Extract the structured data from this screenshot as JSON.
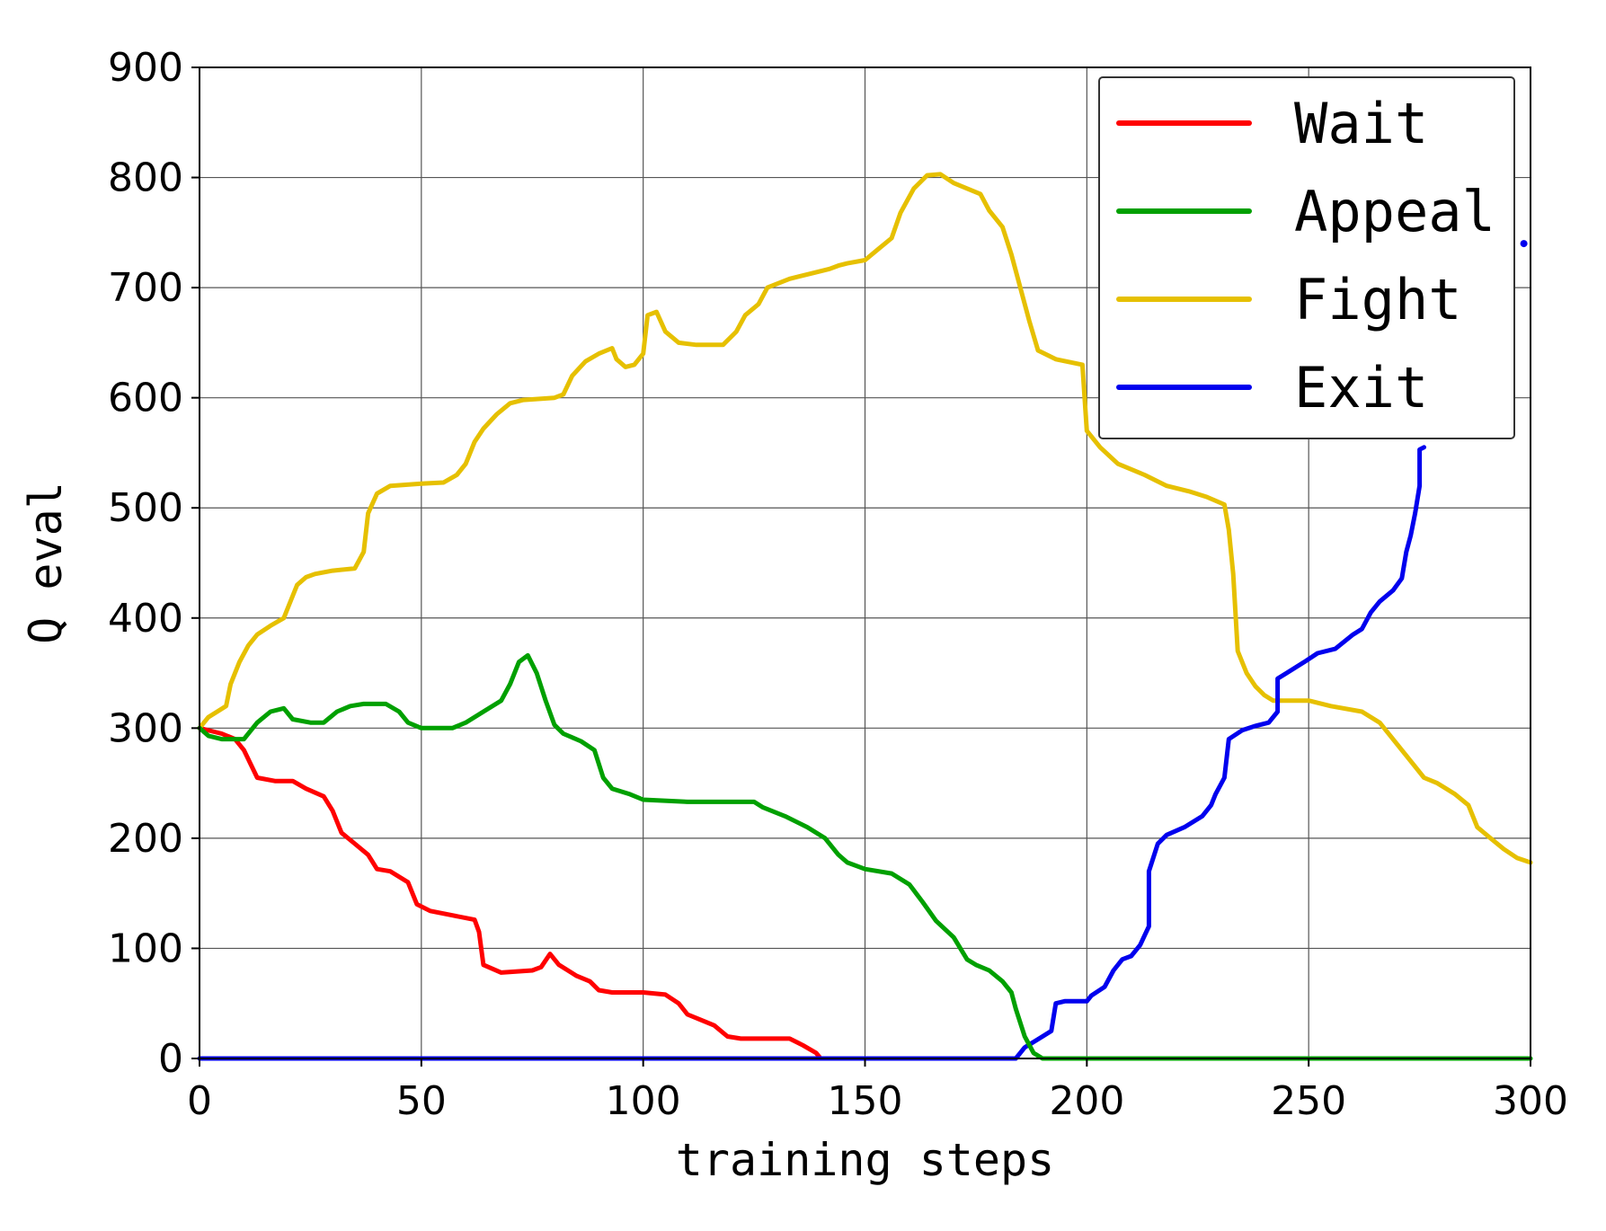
{
  "chart_data": {
    "type": "line",
    "xlabel": "training steps",
    "ylabel": "Q eval",
    "xlim": [
      0,
      300
    ],
    "ylim": [
      0,
      900
    ],
    "xticks": [
      "0",
      "50",
      "100",
      "150",
      "200",
      "250",
      "300"
    ],
    "yticks": [
      "0",
      "100",
      "200",
      "300",
      "400",
      "500",
      "600",
      "700",
      "800",
      "900"
    ],
    "grid": true,
    "legend_position": "top-right",
    "series": [
      {
        "name": "Wait",
        "color": "#ff0000",
        "points": [
          [
            0,
            300
          ],
          [
            5,
            295
          ],
          [
            8,
            290
          ],
          [
            10,
            280
          ],
          [
            13,
            255
          ],
          [
            17,
            252
          ],
          [
            21,
            252
          ],
          [
            24,
            245
          ],
          [
            28,
            238
          ],
          [
            30,
            225
          ],
          [
            32,
            205
          ],
          [
            35,
            195
          ],
          [
            38,
            185
          ],
          [
            40,
            172
          ],
          [
            43,
            170
          ],
          [
            47,
            160
          ],
          [
            49,
            140
          ],
          [
            52,
            134
          ],
          [
            57,
            130
          ],
          [
            62,
            126
          ],
          [
            63,
            115
          ],
          [
            64,
            85
          ],
          [
            68,
            78
          ],
          [
            75,
            80
          ],
          [
            77,
            83
          ],
          [
            79,
            95
          ],
          [
            81,
            85
          ],
          [
            85,
            75
          ],
          [
            88,
            70
          ],
          [
            90,
            62
          ],
          [
            93,
            60
          ],
          [
            100,
            60
          ],
          [
            105,
            58
          ],
          [
            108,
            50
          ],
          [
            110,
            40
          ],
          [
            113,
            35
          ],
          [
            116,
            30
          ],
          [
            119,
            20
          ],
          [
            122,
            18
          ],
          [
            133,
            18
          ],
          [
            136,
            12
          ],
          [
            139,
            5
          ],
          [
            140,
            0
          ]
        ]
      },
      {
        "name": "Appeal",
        "color": "#00a000",
        "points": [
          [
            0,
            300
          ],
          [
            2,
            293
          ],
          [
            5,
            290
          ],
          [
            10,
            290
          ],
          [
            13,
            305
          ],
          [
            16,
            315
          ],
          [
            19,
            318
          ],
          [
            21,
            308
          ],
          [
            25,
            305
          ],
          [
            28,
            305
          ],
          [
            31,
            315
          ],
          [
            34,
            320
          ],
          [
            37,
            322
          ],
          [
            42,
            322
          ],
          [
            45,
            315
          ],
          [
            47,
            305
          ],
          [
            50,
            300
          ],
          [
            57,
            300
          ],
          [
            60,
            305
          ],
          [
            64,
            315
          ],
          [
            68,
            325
          ],
          [
            70,
            340
          ],
          [
            72,
            360
          ],
          [
            74,
            366
          ],
          [
            76,
            350
          ],
          [
            78,
            325
          ],
          [
            80,
            303
          ],
          [
            82,
            295
          ],
          [
            86,
            288
          ],
          [
            89,
            280
          ],
          [
            91,
            255
          ],
          [
            93,
            245
          ],
          [
            97,
            240
          ],
          [
            100,
            235
          ],
          [
            110,
            233
          ],
          [
            125,
            233
          ],
          [
            127,
            228
          ],
          [
            132,
            220
          ],
          [
            137,
            210
          ],
          [
            141,
            200
          ],
          [
            144,
            185
          ],
          [
            146,
            178
          ],
          [
            150,
            172
          ],
          [
            156,
            168
          ],
          [
            160,
            158
          ],
          [
            163,
            142
          ],
          [
            166,
            125
          ],
          [
            170,
            110
          ],
          [
            173,
            90
          ],
          [
            175,
            85
          ],
          [
            178,
            80
          ],
          [
            181,
            70
          ],
          [
            183,
            60
          ],
          [
            184,
            45
          ],
          [
            186,
            20
          ],
          [
            188,
            5
          ],
          [
            190,
            0
          ],
          [
            300,
            0
          ]
        ]
      },
      {
        "name": "Fight",
        "color": "#e6c000",
        "points": [
          [
            0,
            300
          ],
          [
            2,
            310
          ],
          [
            4,
            315
          ],
          [
            6,
            320
          ],
          [
            7,
            340
          ],
          [
            9,
            360
          ],
          [
            11,
            375
          ],
          [
            13,
            385
          ],
          [
            16,
            393
          ],
          [
            19,
            400
          ],
          [
            20,
            410
          ],
          [
            22,
            430
          ],
          [
            24,
            437
          ],
          [
            26,
            440
          ],
          [
            30,
            443
          ],
          [
            35,
            445
          ],
          [
            37,
            460
          ],
          [
            38,
            495
          ],
          [
            40,
            513
          ],
          [
            43,
            520
          ],
          [
            50,
            522
          ],
          [
            55,
            523
          ],
          [
            58,
            530
          ],
          [
            60,
            540
          ],
          [
            62,
            560
          ],
          [
            64,
            572
          ],
          [
            67,
            585
          ],
          [
            70,
            595
          ],
          [
            73,
            598
          ],
          [
            80,
            600
          ],
          [
            82,
            603
          ],
          [
            84,
            620
          ],
          [
            87,
            633
          ],
          [
            90,
            640
          ],
          [
            93,
            645
          ],
          [
            94,
            635
          ],
          [
            96,
            628
          ],
          [
            98,
            630
          ],
          [
            100,
            640
          ],
          [
            101,
            675
          ],
          [
            103,
            678
          ],
          [
            105,
            660
          ],
          [
            108,
            650
          ],
          [
            112,
            648
          ],
          [
            118,
            648
          ],
          [
            121,
            660
          ],
          [
            123,
            675
          ],
          [
            126,
            685
          ],
          [
            128,
            700
          ],
          [
            133,
            708
          ],
          [
            138,
            713
          ],
          [
            142,
            717
          ],
          [
            144,
            720
          ],
          [
            146,
            722
          ],
          [
            150,
            725
          ],
          [
            153,
            735
          ],
          [
            156,
            745
          ],
          [
            158,
            768
          ],
          [
            161,
            790
          ],
          [
            164,
            802
          ],
          [
            167,
            803
          ],
          [
            170,
            795
          ],
          [
            173,
            790
          ],
          [
            176,
            785
          ],
          [
            178,
            770
          ],
          [
            181,
            755
          ],
          [
            183,
            730
          ],
          [
            185,
            700
          ],
          [
            187,
            670
          ],
          [
            189,
            643
          ],
          [
            193,
            635
          ],
          [
            199,
            630
          ],
          [
            200,
            570
          ],
          [
            203,
            555
          ],
          [
            207,
            540
          ],
          [
            213,
            530
          ],
          [
            218,
            520
          ],
          [
            223,
            515
          ],
          [
            227,
            510
          ],
          [
            231,
            503
          ],
          [
            232,
            480
          ],
          [
            233,
            440
          ],
          [
            234,
            370
          ],
          [
            236,
            350
          ],
          [
            238,
            338
          ],
          [
            240,
            330
          ],
          [
            242,
            325
          ],
          [
            250,
            325
          ],
          [
            255,
            320
          ],
          [
            262,
            315
          ],
          [
            266,
            305
          ],
          [
            270,
            285
          ],
          [
            273,
            270
          ],
          [
            276,
            255
          ],
          [
            279,
            250
          ],
          [
            283,
            240
          ],
          [
            286,
            230
          ],
          [
            288,
            210
          ],
          [
            291,
            200
          ],
          [
            294,
            190
          ],
          [
            297,
            182
          ],
          [
            300,
            178
          ]
        ]
      },
      {
        "name": "Exit",
        "color": "#0000ee",
        "points": [
          [
            0,
            0
          ],
          [
            184,
            0
          ],
          [
            186,
            10
          ],
          [
            188,
            15
          ],
          [
            190,
            20
          ],
          [
            192,
            25
          ],
          [
            193,
            50
          ],
          [
            195,
            52
          ],
          [
            200,
            52
          ],
          [
            201,
            57
          ],
          [
            204,
            65
          ],
          [
            206,
            80
          ],
          [
            208,
            90
          ],
          [
            210,
            93
          ],
          [
            212,
            103
          ],
          [
            214,
            120
          ],
          [
            214,
            170
          ],
          [
            216,
            195
          ],
          [
            218,
            203
          ],
          [
            222,
            210
          ],
          [
            226,
            220
          ],
          [
            228,
            230
          ],
          [
            229,
            240
          ],
          [
            231,
            255
          ],
          [
            232,
            290
          ],
          [
            235,
            298
          ],
          [
            238,
            302
          ],
          [
            241,
            305
          ],
          [
            243,
            315
          ],
          [
            243,
            345
          ],
          [
            245,
            350
          ],
          [
            249,
            360
          ],
          [
            252,
            368
          ],
          [
            256,
            372
          ],
          [
            260,
            385
          ],
          [
            262,
            390
          ],
          [
            264,
            405
          ],
          [
            266,
            415
          ],
          [
            269,
            425
          ],
          [
            271,
            436
          ],
          [
            272,
            460
          ],
          [
            273,
            475
          ],
          [
            274,
            495
          ],
          [
            275,
            520
          ],
          [
            275,
            553
          ],
          [
            276,
            555
          ]
        ]
      }
    ]
  }
}
